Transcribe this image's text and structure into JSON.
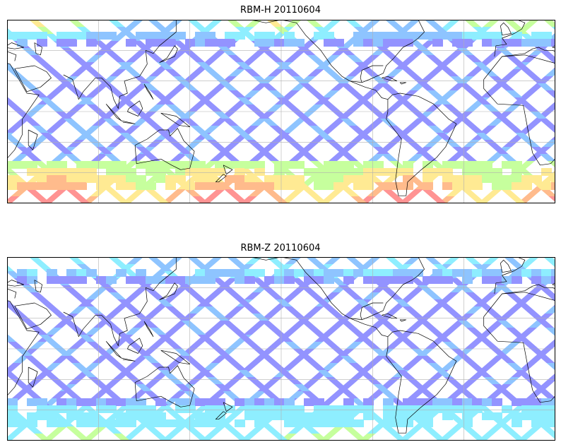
{
  "panels": [
    {
      "title": "RBM-H 20110604",
      "lon_range": [
        30,
        390
      ],
      "lat_range": [
        -60,
        60
      ],
      "gridlines": {
        "lon_step": 60,
        "lat_step": 20
      },
      "colormap": "jet",
      "alpha": 0.65,
      "map_features": [
        "coastlines",
        "gridlines",
        "satellite-swath-tracks"
      ]
    },
    {
      "title": "RBM-Z 20110604",
      "lon_range": [
        30,
        390
      ],
      "lat_range": [
        -60,
        60
      ],
      "gridlines": {
        "lon_step": 60,
        "lat_step": 20
      },
      "colormap": "jet",
      "alpha": 0.65,
      "map_features": [
        "coastlines",
        "gridlines",
        "satellite-swath-tracks"
      ]
    }
  ],
  "colors": {
    "low": "#5a5aff",
    "mid_low": "#52a6ff",
    "mid": "#52e6ff",
    "mid_high": "#a8ff6a",
    "high": "#ffe05a",
    "very_high": "#ff9850",
    "max": "#ff5a5a"
  }
}
